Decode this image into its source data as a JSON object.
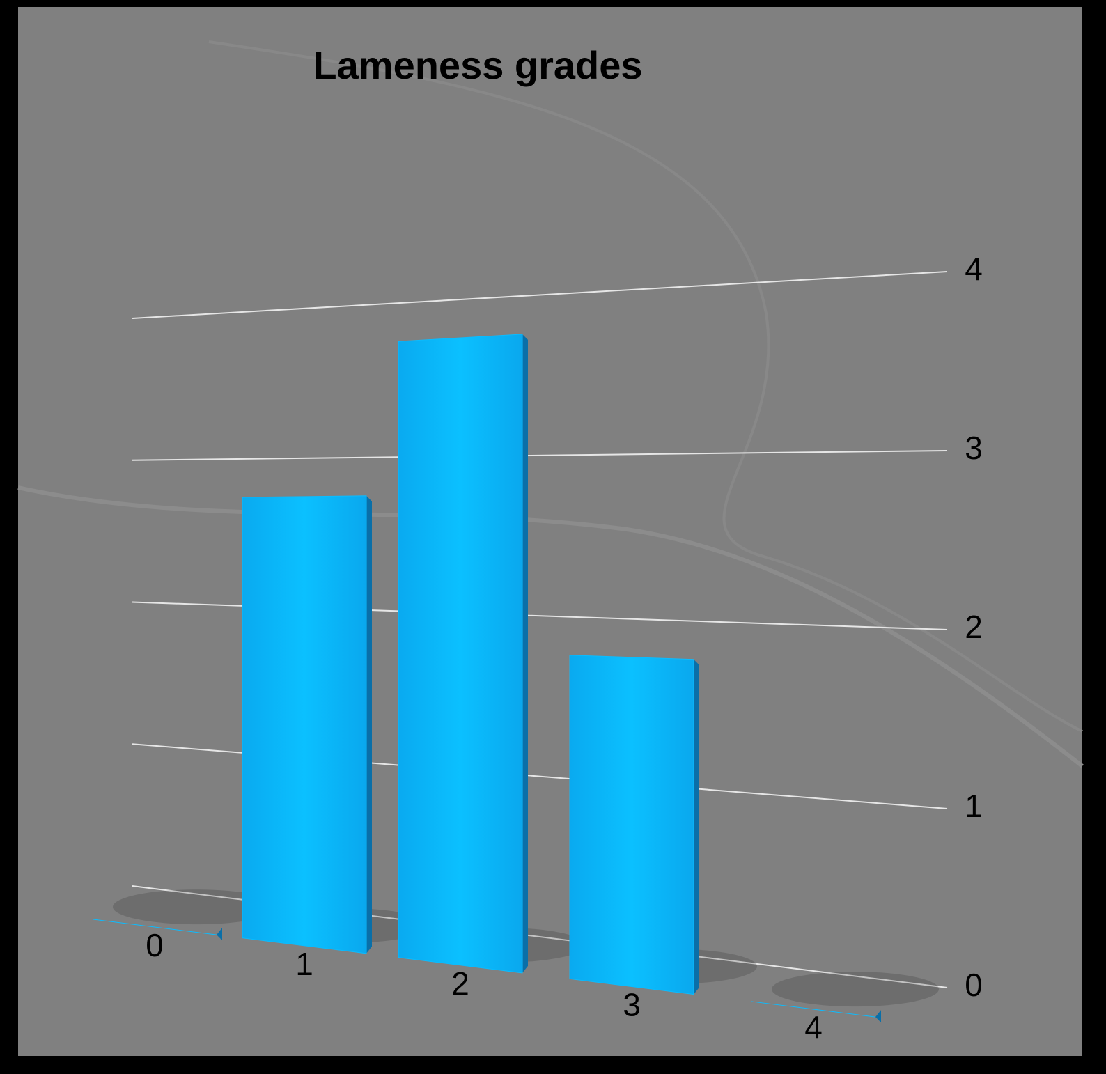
{
  "chart_data": {
    "type": "bar3d",
    "title": "Lameness grades",
    "categories": [
      "0",
      "1",
      "2",
      "3",
      "4"
    ],
    "values": [
      0,
      3,
      4,
      2,
      0
    ],
    "color": "#0bbcff",
    "ylim": [
      0,
      4
    ],
    "yticks": [
      0,
      1,
      2,
      3,
      4
    ],
    "grid": true
  }
}
